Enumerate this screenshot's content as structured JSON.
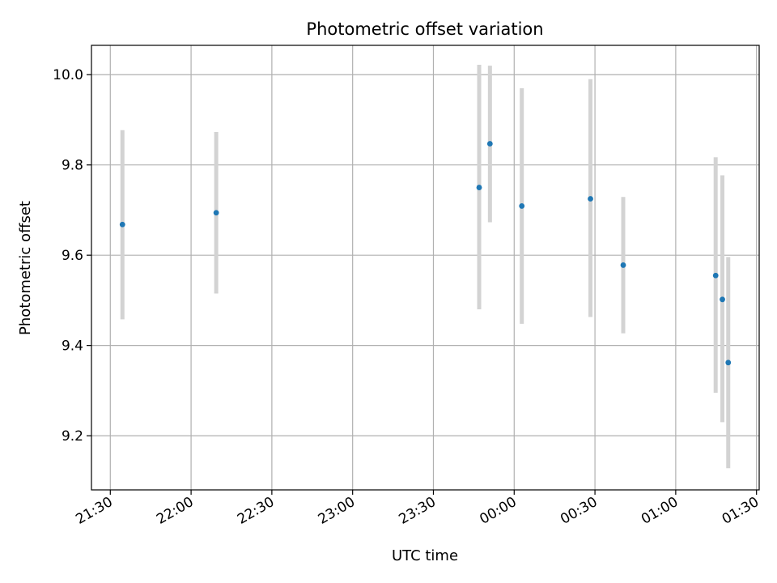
{
  "chart_data": {
    "type": "scatter",
    "title": "Photometric offset variation",
    "xlabel": "UTC time",
    "ylabel": "Photometric offset",
    "xlim": [
      "21:23",
      "01:31"
    ],
    "ylim": [
      9.08,
      10.065
    ],
    "x_ticks": [
      "21:30",
      "22:00",
      "22:30",
      "23:00",
      "23:30",
      "00:00",
      "00:30",
      "01:00",
      "01:30"
    ],
    "y_ticks": [
      "9.2",
      "9.4",
      "9.6",
      "9.8",
      "10.0"
    ],
    "grid": true,
    "series": [
      {
        "marker_color": "#1f77b4",
        "errorbar_color": "#d3d3d3",
        "points": [
          {
            "x": "21:34:30",
            "y": 9.668,
            "yerr_low": 9.458,
            "yerr_high": 9.877
          },
          {
            "x": "22:09:20",
            "y": 9.694,
            "yerr_low": 9.515,
            "yerr_high": 9.873
          },
          {
            "x": "23:47:00",
            "y": 9.75,
            "yerr_low": 9.48,
            "yerr_high": 10.022
          },
          {
            "x": "23:51:00",
            "y": 9.847,
            "yerr_low": 9.673,
            "yerr_high": 10.02
          },
          {
            "x": "00:02:50",
            "y": 9.709,
            "yerr_low": 9.448,
            "yerr_high": 9.97
          },
          {
            "x": "00:28:20",
            "y": 9.725,
            "yerr_low": 9.463,
            "yerr_high": 9.99
          },
          {
            "x": "00:40:30",
            "y": 9.578,
            "yerr_low": 9.427,
            "yerr_high": 9.729
          },
          {
            "x": "01:14:50",
            "y": 9.555,
            "yerr_low": 9.295,
            "yerr_high": 9.817
          },
          {
            "x": "01:17:20",
            "y": 9.502,
            "yerr_low": 9.23,
            "yerr_high": 9.777
          },
          {
            "x": "01:19:30",
            "y": 9.362,
            "yerr_low": 9.128,
            "yerr_high": 9.596
          }
        ]
      }
    ]
  }
}
